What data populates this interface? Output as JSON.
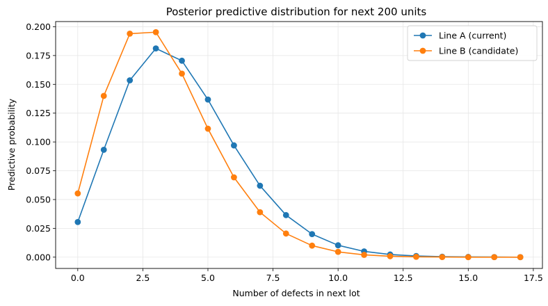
{
  "chart_data": {
    "type": "line",
    "title": "Posterior predictive distribution for next 200 units",
    "xlabel": "Number of defects in next lot",
    "ylabel": "Predictive probability",
    "xlim": [
      -0.85,
      17.85
    ],
    "ylim": [
      -0.0098,
      0.2045
    ],
    "xticks": [
      0.0,
      2.5,
      5.0,
      7.5,
      10.0,
      12.5,
      15.0,
      17.5
    ],
    "xtick_labels": [
      "0.0",
      "2.5",
      "5.0",
      "7.5",
      "10.0",
      "12.5",
      "15.0",
      "17.5"
    ],
    "yticks": [
      0.0,
      0.025,
      0.05,
      0.075,
      0.1,
      0.125,
      0.15,
      0.175,
      0.2
    ],
    "ytick_labels": [
      "0.000",
      "0.025",
      "0.050",
      "0.075",
      "0.100",
      "0.125",
      "0.150",
      "0.175",
      "0.200"
    ],
    "grid": true,
    "legend_position": "top-right",
    "x": [
      0,
      1,
      2,
      3,
      4,
      5,
      6,
      7,
      8,
      9,
      10,
      11,
      12,
      13,
      14,
      15,
      16,
      17
    ],
    "series": [
      {
        "name": "Line A (current)",
        "color": "#1f77b4",
        "marker": "circle",
        "values": [
          0.0305,
          0.0932,
          0.1535,
          0.1812,
          0.1705,
          0.1368,
          0.097,
          0.062,
          0.0365,
          0.02,
          0.0103,
          0.005,
          0.0023,
          0.001,
          0.0004,
          0.0002,
          0.0001,
          0.0
        ]
      },
      {
        "name": "Line B (candidate)",
        "color": "#ff7f0e",
        "marker": "circle",
        "values": [
          0.0553,
          0.14,
          0.194,
          0.1953,
          0.1593,
          0.1115,
          0.0693,
          0.039,
          0.0205,
          0.01,
          0.0046,
          0.002,
          0.0008,
          0.0003,
          0.0001,
          0.0,
          0.0,
          0.0
        ]
      }
    ]
  }
}
